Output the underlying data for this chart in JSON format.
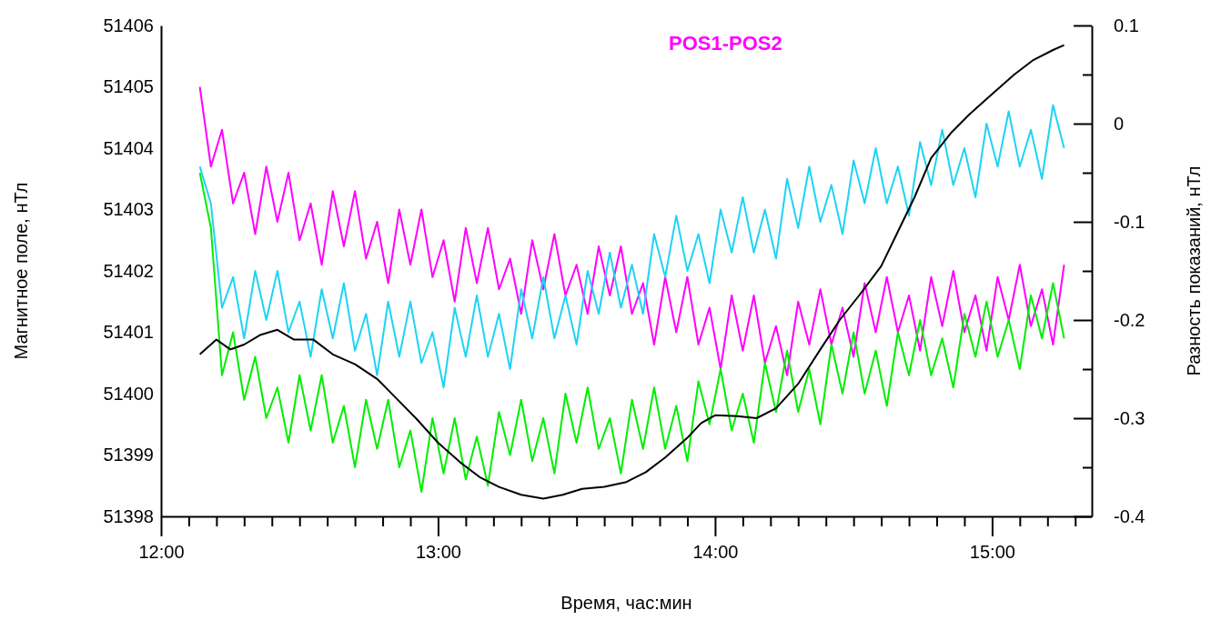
{
  "chart_data": {
    "type": "line",
    "xlabel": "Время, час:мин",
    "ylabel": "Магнитное поле, нТл",
    "y2label": "Разность показаний, нТл",
    "legend": "top right",
    "grid": false,
    "marker": "none",
    "line_style": "solid",
    "xlim": [
      12,
      15.36
    ],
    "ylim": [
      51398,
      51406
    ],
    "y2lim": [
      -0.4,
      0.1
    ],
    "xticks": [
      {
        "value": 12,
        "label": "12:00"
      },
      {
        "value": 12.1,
        "label": null
      },
      {
        "value": 12.2,
        "label": null
      },
      {
        "value": 12.3,
        "label": null
      },
      {
        "value": 12.4,
        "label": null
      },
      {
        "value": 12.5,
        "label": null
      },
      {
        "value": 12.6,
        "label": null
      },
      {
        "value": 12.7,
        "label": null
      },
      {
        "value": 12.8,
        "label": null
      },
      {
        "value": 12.9,
        "label": null
      },
      {
        "value": 13,
        "label": "13:00"
      },
      {
        "value": 13.1,
        "label": null
      },
      {
        "value": 13.2,
        "label": null
      },
      {
        "value": 13.3,
        "label": null
      },
      {
        "value": 13.4,
        "label": null
      },
      {
        "value": 13.5,
        "label": null
      },
      {
        "value": 13.6,
        "label": null
      },
      {
        "value": 13.7,
        "label": null
      },
      {
        "value": 13.8,
        "label": null
      },
      {
        "value": 13.9,
        "label": null
      },
      {
        "value": 14,
        "label": "14:00"
      },
      {
        "value": 14.1,
        "label": null
      },
      {
        "value": 14.2,
        "label": null
      },
      {
        "value": 14.3,
        "label": null
      },
      {
        "value": 14.4,
        "label": null
      },
      {
        "value": 14.5,
        "label": null
      },
      {
        "value": 14.6,
        "label": null
      },
      {
        "value": 14.7,
        "label": null
      },
      {
        "value": 14.8,
        "label": null
      },
      {
        "value": 14.9,
        "label": null
      },
      {
        "value": 15,
        "label": "15:00"
      },
      {
        "value": 15.1,
        "label": null
      },
      {
        "value": 15.2,
        "label": null
      },
      {
        "value": 15.3,
        "label": null
      }
    ],
    "yticks": [
      51398,
      51399,
      51400,
      51401,
      51402,
      51403,
      51404,
      51405,
      51406
    ],
    "y2ticks": [
      -0.4,
      {
        "value": -0.35,
        "label": null
      },
      -0.3,
      {
        "value": -0.25,
        "label": null
      },
      -0.2,
      {
        "value": -0.15,
        "label": null
      },
      -0.1,
      {
        "value": -0.05,
        "label": null
      },
      0,
      {
        "value": 0.05,
        "label": null
      },
      0.1
    ],
    "x": [
      12.14,
      12.18,
      12.22,
      12.26,
      12.3,
      12.34,
      12.38,
      12.42,
      12.46,
      12.5,
      12.54,
      12.58,
      12.62,
      12.66,
      12.7,
      12.74,
      12.78,
      12.82,
      12.86,
      12.9,
      12.94,
      12.98,
      13.02,
      13.06,
      13.1,
      13.14,
      13.18,
      13.22,
      13.26,
      13.3,
      13.34,
      13.38,
      13.42,
      13.46,
      13.5,
      13.54,
      13.58,
      13.62,
      13.66,
      13.7,
      13.74,
      13.78,
      13.82,
      13.86,
      13.9,
      13.94,
      13.98,
      14.02,
      14.06,
      14.1,
      14.14,
      14.18,
      14.22,
      14.26,
      14.3,
      14.34,
      14.38,
      14.42,
      14.46,
      14.5,
      14.54,
      14.58,
      14.62,
      14.66,
      14.7,
      14.74,
      14.78,
      14.82,
      14.86,
      14.9,
      14.94,
      14.98,
      15.02,
      15.06,
      15.1,
      15.14,
      15.18,
      15.22,
      15.26
    ],
    "series": [
      {
        "name": "POS1-POS2",
        "color": "#ff00ff",
        "values": [
          51405.0,
          51403.7,
          51404.3,
          51403.1,
          51403.6,
          51402.6,
          51403.7,
          51402.8,
          51403.6,
          51402.5,
          51403.1,
          51402.1,
          51403.3,
          51402.4,
          51403.3,
          51402.2,
          51402.8,
          51401.8,
          51403.0,
          51402.1,
          51403.0,
          51401.9,
          51402.5,
          51401.5,
          51402.7,
          51401.8,
          51402.7,
          51401.7,
          51402.2,
          51401.3,
          51402.5,
          51401.7,
          51402.6,
          51401.6,
          51402.1,
          51401.3,
          51402.4,
          51401.6,
          51402.4,
          51401.3,
          51401.8,
          51400.8,
          51401.9,
          51401.0,
          51401.9,
          51400.8,
          51401.4,
          51400.4,
          51401.6,
          51400.7,
          51401.6,
          51400.5,
          51401.1,
          51400.3,
          51401.5,
          51400.8,
          51401.7,
          51400.8,
          51401.4,
          51400.6,
          51401.8,
          51401.0,
          51401.9,
          51401.0,
          51401.6,
          51400.7,
          51401.9,
          51401.1,
          51402.0,
          51401.0,
          51401.6,
          51400.7,
          51401.9,
          51401.2,
          51402.1,
          51401.1,
          51401.7,
          51400.8,
          51402.1
        ]
      },
      {
        "color": "#00ee00",
        "values": [
          51403.6,
          51402.7,
          51400.3,
          51401.0,
          51399.9,
          51400.6,
          51399.6,
          51400.1,
          51399.2,
          51400.3,
          51399.4,
          51400.3,
          51399.2,
          51399.8,
          51398.8,
          51399.9,
          51399.1,
          51399.9,
          51398.8,
          51399.4,
          51398.4,
          51399.6,
          51398.7,
          51399.6,
          51398.6,
          51399.3,
          51398.5,
          51399.7,
          51399.0,
          51399.9,
          51398.9,
          51399.6,
          51398.7,
          51400.0,
          51399.2,
          51400.1,
          51399.1,
          51399.6,
          51398.7,
          51399.9,
          51399.1,
          51400.1,
          51399.1,
          51399.8,
          51398.9,
          51400.2,
          51399.5,
          51400.4,
          51399.4,
          51400.0,
          51399.2,
          51400.5,
          51399.7,
          51400.7,
          51399.7,
          51400.4,
          51399.5,
          51400.8,
          51400.0,
          51401.0,
          51400.0,
          51400.7,
          51399.8,
          51401.0,
          51400.3,
          51401.2,
          51400.3,
          51400.9,
          51400.1,
          51401.3,
          51400.6,
          51401.5,
          51400.6,
          51401.2,
          51400.4,
          51401.6,
          51400.9,
          51401.8,
          51400.9
        ]
      },
      {
        "color": "#1ed3f5",
        "values": [
          51403.7,
          51403.1,
          51401.4,
          51401.9,
          51400.9,
          51402.0,
          51401.2,
          51402.0,
          51401.0,
          51401.5,
          51400.6,
          51401.7,
          51400.9,
          51401.8,
          51400.7,
          51401.3,
          51400.3,
          51401.5,
          51400.6,
          51401.5,
          51400.5,
          51401.0,
          51400.1,
          51401.4,
          51400.6,
          51401.6,
          51400.6,
          51401.3,
          51400.4,
          51401.7,
          51400.9,
          51401.9,
          51400.9,
          51401.6,
          51400.8,
          51402.0,
          51401.3,
          51402.3,
          51401.4,
          51402.1,
          51401.3,
          51402.6,
          51401.9,
          51402.9,
          51402.0,
          51402.6,
          51401.8,
          51403.0,
          51402.3,
          51403.2,
          51402.3,
          51403.0,
          51402.2,
          51403.5,
          51402.7,
          51403.7,
          51402.8,
          51403.4,
          51402.6,
          51403.8,
          51403.1,
          51404.0,
          51403.1,
          51403.7,
          51402.9,
          51404.1,
          51403.4,
          51404.3,
          51403.4,
          51404.0,
          51403.2,
          51404.4,
          51403.7,
          51404.6,
          51403.7,
          51404.3,
          51403.5,
          51404.7,
          51404.0
        ]
      },
      {
        "color": "#000000",
        "axis": "y2",
        "x": [
          12.14,
          12.2,
          12.25,
          12.3,
          12.36,
          12.42,
          12.48,
          12.55,
          12.62,
          12.7,
          12.78,
          12.85,
          12.92,
          13.0,
          13.08,
          13.15,
          13.22,
          13.3,
          13.38,
          13.45,
          13.52,
          13.6,
          13.68,
          13.75,
          13.82,
          13.9,
          13.95,
          14.0,
          14.08,
          14.15,
          14.22,
          14.3,
          14.38,
          14.45,
          14.52,
          14.6,
          14.66,
          14.72,
          14.78,
          14.85,
          14.92,
          15.0,
          15.08,
          15.15,
          15.22,
          15.26
        ],
        "values": [
          -0.235,
          -0.22,
          -0.23,
          -0.225,
          -0.215,
          -0.21,
          -0.22,
          -0.22,
          -0.235,
          -0.245,
          -0.26,
          -0.28,
          -0.3,
          -0.325,
          -0.345,
          -0.36,
          -0.37,
          -0.378,
          -0.382,
          -0.378,
          -0.372,
          -0.37,
          -0.365,
          -0.355,
          -0.34,
          -0.32,
          -0.305,
          -0.297,
          -0.298,
          -0.3,
          -0.29,
          -0.265,
          -0.23,
          -0.2,
          -0.175,
          -0.145,
          -0.11,
          -0.075,
          -0.035,
          -0.01,
          0.01,
          0.03,
          0.05,
          0.065,
          0.075,
          0.08
        ]
      }
    ]
  }
}
